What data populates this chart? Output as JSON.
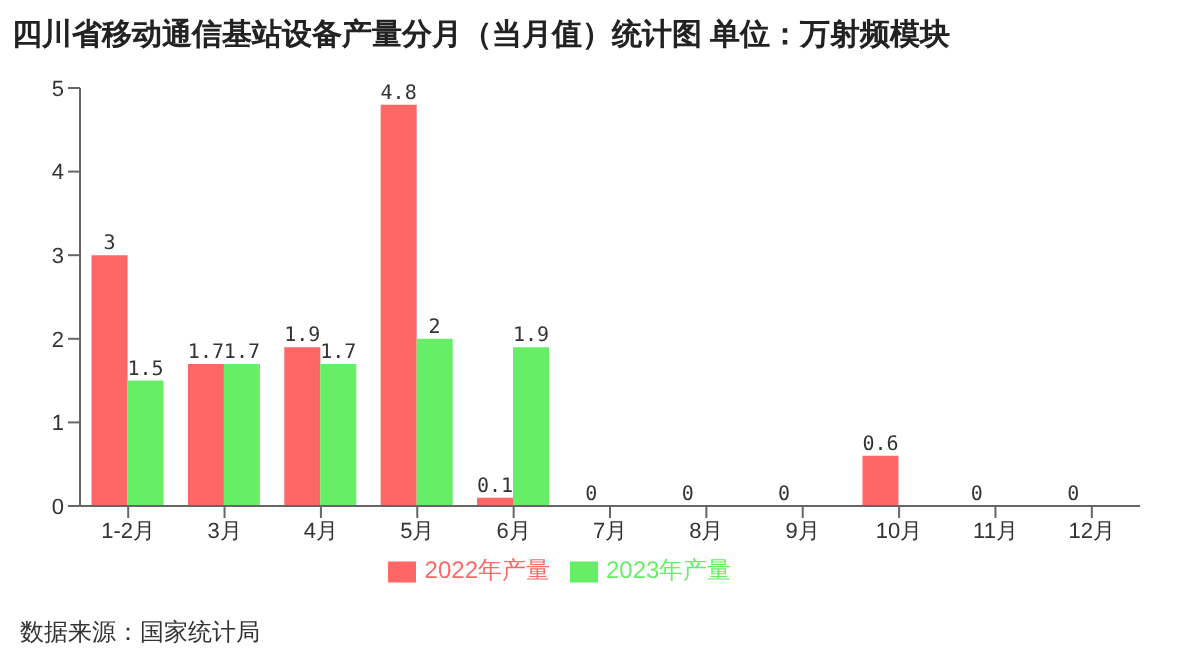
{
  "chart_data": {
    "type": "bar",
    "title": "四川省移动通信基站设备产量分月（当月值）统计图 单位：万射频模块",
    "categories": [
      "1-2月",
      "3月",
      "4月",
      "5月",
      "6月",
      "7月",
      "8月",
      "9月",
      "10月",
      "11月",
      "12月"
    ],
    "series": [
      {
        "name": "2022年产量",
        "color": "#ff6666",
        "values": [
          3,
          1.7,
          1.9,
          4.8,
          0.1,
          0,
          0,
          0,
          0.6,
          0,
          0
        ]
      },
      {
        "name": "2023年产量",
        "color": "#66ee66",
        "values": [
          1.5,
          1.7,
          1.7,
          2,
          1.9,
          null,
          null,
          null,
          null,
          null,
          null
        ]
      }
    ],
    "ylim": [
      0,
      5
    ],
    "yticks": [
      0,
      1,
      2,
      3,
      4,
      5
    ],
    "grid": false,
    "legend": "bottom",
    "data_labels": true,
    "annotations": [
      "数据来源：国家统计局"
    ]
  }
}
